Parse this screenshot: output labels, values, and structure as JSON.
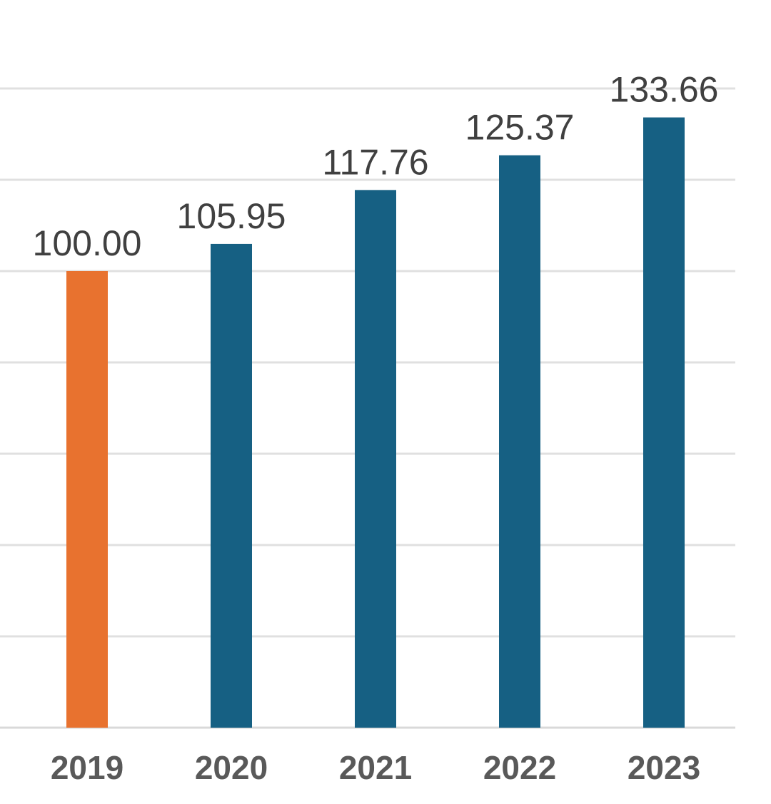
{
  "chart_data": {
    "type": "bar",
    "title": "",
    "xlabel": "",
    "ylabel": "",
    "categories": [
      "2019",
      "2020",
      "2021",
      "2022",
      "2023"
    ],
    "values": [
      100.0,
      105.95,
      117.76,
      125.37,
      133.66
    ],
    "value_labels": [
      "100.00",
      "105.95",
      "117.76",
      "125.37",
      "133.66"
    ],
    "ylim": [
      0,
      140
    ],
    "gridline_step": 20,
    "grid": true,
    "colors": [
      "#E8722F",
      "#166083",
      "#166083",
      "#166083",
      "#166083"
    ],
    "grid_color": "#E0E0E0"
  }
}
